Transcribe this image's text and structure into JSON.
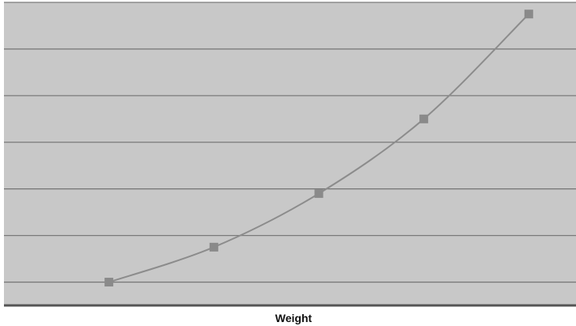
{
  "chart_data": {
    "type": "line",
    "title": "",
    "xlabel": "Weight",
    "ylabel": "",
    "x": [
      1,
      2,
      3,
      4,
      5
    ],
    "series": [
      {
        "values": [
          1,
          1.75,
          2.9,
          4.5,
          6.75
        ]
      }
    ],
    "xlim": [
      0.0,
      5.45
    ],
    "ylim": [
      0.5,
      7
    ],
    "gridlines_y": [
      1,
      2,
      3,
      4,
      5,
      6,
      7
    ],
    "grid": true,
    "legend": "none",
    "colors": {
      "plot_bg": "#c8c8c8",
      "gridline": "#7a7a7a",
      "line": "#8c8c8c",
      "marker": "#8a8a8a",
      "axis": "#555555"
    }
  }
}
